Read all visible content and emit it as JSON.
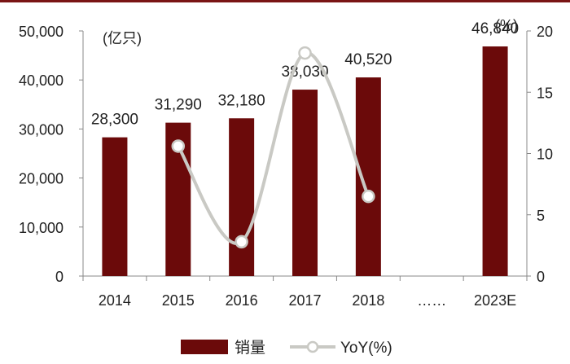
{
  "colors": {
    "bar": "#6b0a0a",
    "line": "#c9c9c4",
    "marker_fill": "#ffffff",
    "axis": "#888888",
    "top_rule": "#7a1515"
  },
  "chart_data": {
    "type": "bar",
    "categories": [
      "2014",
      "2015",
      "2016",
      "2017",
      "2018",
      "……",
      "2023E"
    ],
    "series": [
      {
        "name": "销量",
        "type": "bar",
        "axis": "left",
        "values": [
          28300,
          31290,
          32180,
          38030,
          40520,
          null,
          46840
        ],
        "labels": [
          "28,300",
          "31,290",
          "32,180",
          "38,030",
          "40,520",
          "",
          "46,840"
        ]
      },
      {
        "name": "YoY(%)",
        "type": "line",
        "axis": "right",
        "values": [
          null,
          10.6,
          2.8,
          18.2,
          6.5,
          null,
          null
        ]
      }
    ],
    "y_left": {
      "unit": "(亿只)",
      "lim": [
        0,
        50000
      ],
      "ticks": [
        0,
        10000,
        20000,
        30000,
        40000,
        50000
      ],
      "tick_labels": [
        "0",
        "10,000",
        "20,000",
        "30,000",
        "40,000",
        "50,000"
      ]
    },
    "y_right": {
      "unit": "(%)",
      "lim": [
        0,
        20
      ],
      "ticks": [
        0,
        5,
        10,
        15,
        20
      ],
      "tick_labels": [
        "0",
        "5",
        "10",
        "15",
        "20"
      ]
    },
    "grid": false,
    "legend_position": "bottom-center"
  }
}
